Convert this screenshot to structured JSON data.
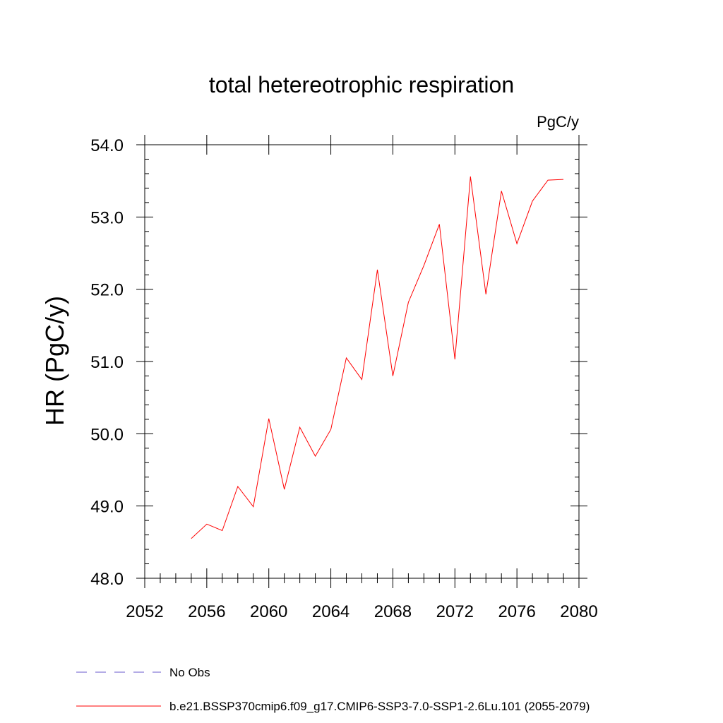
{
  "chart_data": {
    "type": "line",
    "title": "total hetereotrophic respiration",
    "units_label": "PgC/y",
    "xlabel": "",
    "ylabel": "HR  (PgC/y)",
    "xlim": [
      2052,
      2080
    ],
    "ylim": [
      48.0,
      54.0
    ],
    "x_ticks": [
      2052,
      2056,
      2060,
      2064,
      2068,
      2072,
      2076,
      2080
    ],
    "x_tick_labels": [
      "2052",
      "2056",
      "2060",
      "2064",
      "2068",
      "2072",
      "2076",
      "2080"
    ],
    "y_ticks": [
      48.0,
      49.0,
      50.0,
      51.0,
      52.0,
      53.0,
      54.0
    ],
    "y_tick_labels": [
      "48.0",
      "49.0",
      "50.0",
      "51.0",
      "52.0",
      "53.0",
      "54.0"
    ],
    "grid": false,
    "legend_position": "bottom",
    "series": [
      {
        "name": "b.e21.BSSP370cmip6.f09_g17.CMIP6-SSP3-7.0-SSP1-2.6Lu.101 (2055-2079)",
        "color": "#ff0000",
        "dash": "solid",
        "x": [
          2055,
          2056,
          2057,
          2058,
          2059,
          2060,
          2061,
          2062,
          2063,
          2064,
          2065,
          2066,
          2067,
          2068,
          2069,
          2070,
          2071,
          2072,
          2073,
          2074,
          2075,
          2076,
          2077,
          2078,
          2079
        ],
        "values": [
          48.55,
          48.75,
          48.66,
          49.27,
          48.99,
          50.21,
          49.23,
          50.09,
          49.69,
          50.06,
          51.05,
          50.75,
          52.27,
          50.8,
          51.82,
          52.33,
          52.9,
          51.03,
          53.56,
          51.93,
          53.36,
          52.63,
          53.22,
          53.51,
          53.52
        ]
      }
    ],
    "legend": [
      {
        "label": "No Obs",
        "color": "#6a5acd",
        "dash": "dashed"
      },
      {
        "label": "b.e21.BSSP370cmip6.f09_g17.CMIP6-SSP3-7.0-SSP1-2.6Lu.101 (2055-2079)",
        "color": "#ff0000",
        "dash": "solid"
      }
    ]
  }
}
